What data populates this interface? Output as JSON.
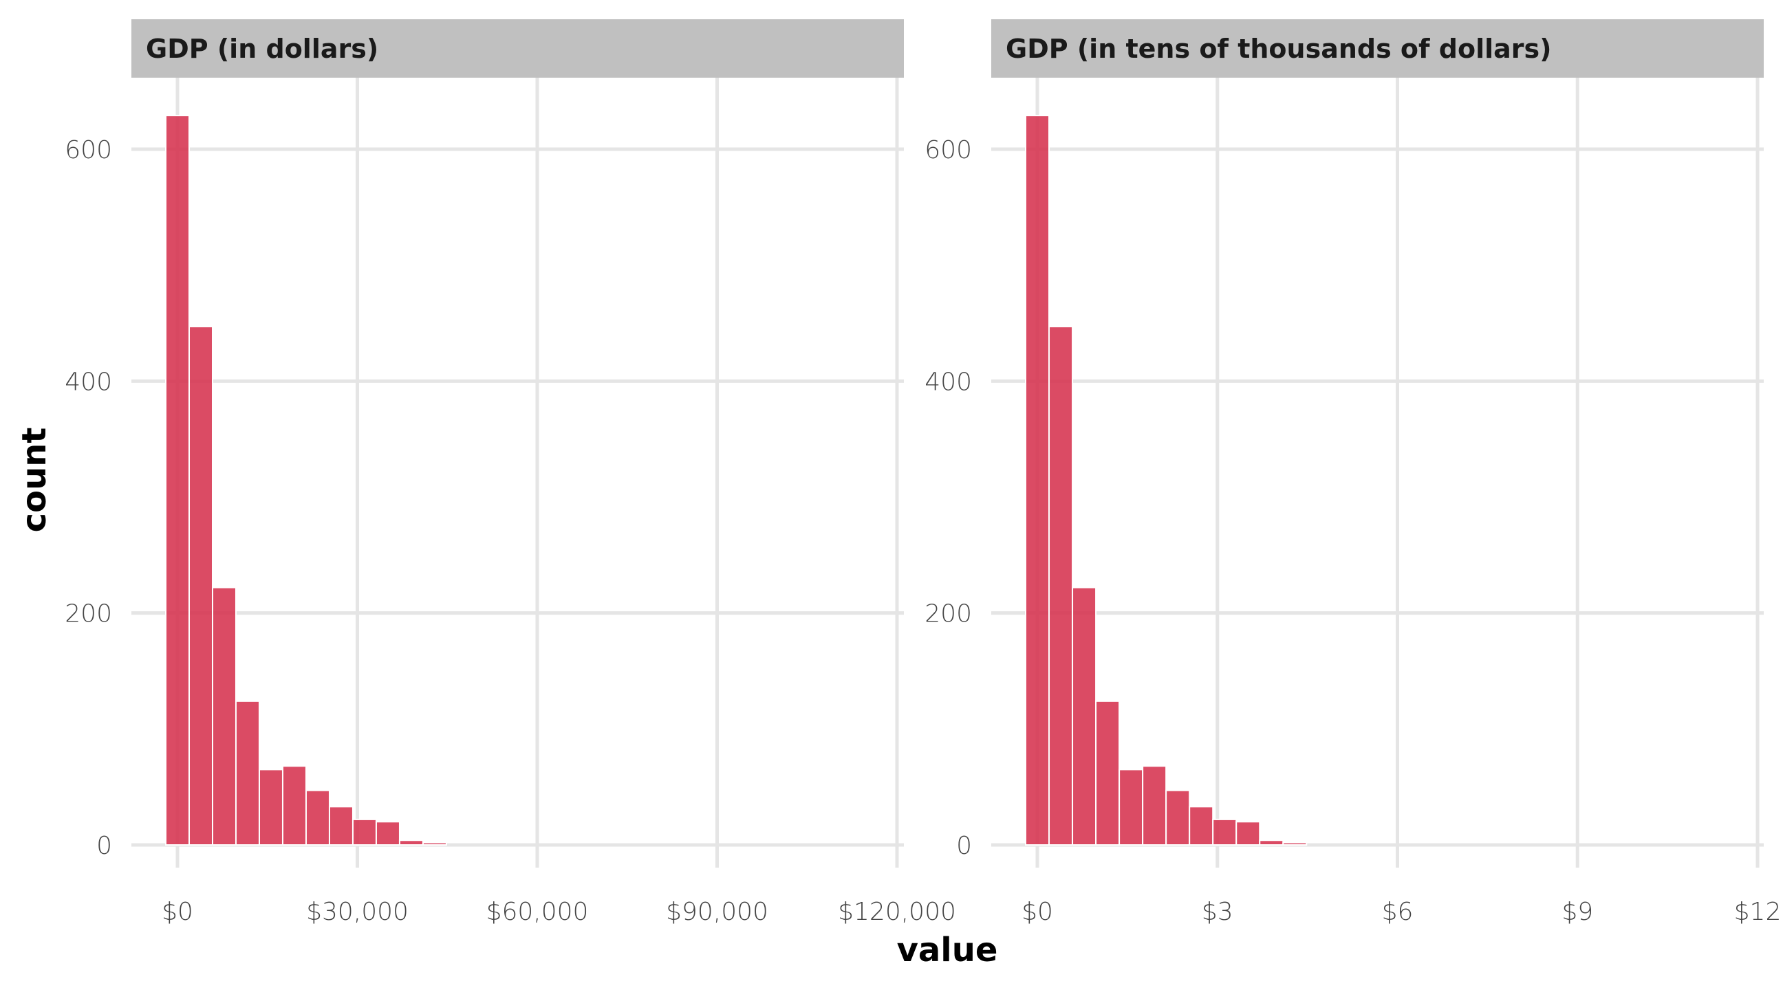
{
  "chart_data": {
    "type": "bar",
    "subtype": "histogram",
    "xlabel": "value",
    "ylabel": "count",
    "bar_color": "#d6324f",
    "strip_color": "#c0c0c0",
    "grid_color": "#e5e5e5",
    "grid": true,
    "legend": "none",
    "ylim": [
      0,
      650
    ],
    "yticks": [
      0,
      200,
      400,
      600
    ],
    "ytick_labels": [
      "0",
      "200",
      "400",
      "600"
    ],
    "panels": [
      {
        "title": "GDP (in dollars)",
        "xlim": [
          -3900,
          120000
        ],
        "xticks": [
          0,
          30000,
          60000,
          90000,
          120000
        ],
        "xtick_labels": [
          "$0",
          "$30,000",
          "$60,000",
          "$90,000",
          "$120,000"
        ],
        "bin_width": 3900,
        "bin_centers": [
          0,
          3900,
          7800,
          11700,
          15600,
          19500,
          23400,
          27300,
          31200,
          35100,
          39000,
          42900,
          46800,
          50700,
          54600,
          58500,
          62400,
          66300,
          70200,
          74100,
          78000,
          81900,
          85800,
          89700,
          93600,
          97500,
          101400,
          105300,
          109200,
          113100
        ],
        "counts": [
          629,
          447,
          222,
          124,
          65,
          68,
          47,
          33,
          22,
          20,
          4,
          2,
          0,
          0,
          0,
          0,
          0,
          0,
          0,
          0,
          0,
          0,
          0,
          0,
          0,
          0,
          0,
          0,
          0,
          0
        ]
      },
      {
        "title": "GDP (in tens of thousands of dollars)",
        "xlim": [
          -0.39,
          12
        ],
        "xticks": [
          0,
          3,
          6,
          9,
          12
        ],
        "xtick_labels": [
          "$0",
          "$3",
          "$6",
          "$9",
          "$12"
        ],
        "bin_width": 0.39,
        "bin_centers": [
          0,
          0.39,
          0.78,
          1.17,
          1.56,
          1.95,
          2.34,
          2.73,
          3.12,
          3.51,
          3.9,
          4.29,
          4.68,
          5.07,
          5.46,
          5.85,
          6.24,
          6.63,
          7.02,
          7.41,
          7.8,
          8.19,
          8.58,
          8.97,
          9.36,
          9.75,
          10.14,
          10.53,
          10.92,
          11.31
        ],
        "counts": [
          629,
          447,
          222,
          124,
          65,
          68,
          47,
          33,
          22,
          20,
          4,
          2,
          0,
          0,
          0,
          0,
          0,
          0,
          0,
          0,
          0,
          0,
          0,
          0,
          0,
          0,
          0,
          0,
          0,
          0
        ]
      }
    ]
  }
}
